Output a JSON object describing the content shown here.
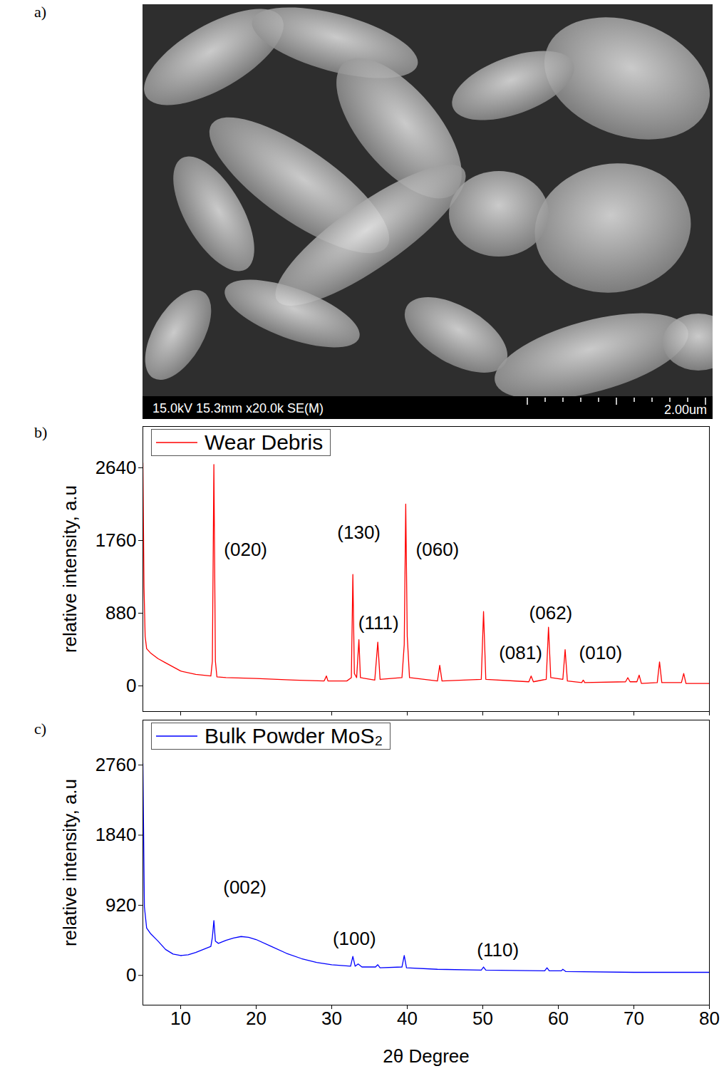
{
  "sem_image": {
    "panel": "a)",
    "info": "15.0kV 15.3mm x20.0k SE(M)",
    "scale_bar": "2.00um"
  },
  "chart_data": [
    {
      "type": "line",
      "panel": "b)",
      "y_label": "relative intensity, a.u",
      "xlim": [
        5,
        80
      ],
      "xticks": [
        10,
        20,
        30,
        40,
        50,
        60,
        70,
        80
      ],
      "ylim": [
        -310,
        3140
      ],
      "yticks": [
        0,
        880,
        1760,
        2640
      ],
      "tick_labels": "y",
      "legend": "top-left",
      "x": [
        5,
        5.15,
        5.3,
        5.5,
        6,
        7,
        8,
        10,
        12,
        14,
        14.2,
        14.4,
        14.6,
        14.8,
        16,
        20,
        25,
        29,
        29.3,
        29.5,
        32,
        32.6,
        32.8,
        33.0,
        33.3,
        33.6,
        33.8,
        35.7,
        36.1,
        36.4,
        39.3,
        39.6,
        39.8,
        40.0,
        40.3,
        44.0,
        44.3,
        44.6,
        49.8,
        50.1,
        50.4,
        56.1,
        56.4,
        56.7,
        58.4,
        58.7,
        59.0,
        60.6,
        60.9,
        61.2,
        63.1,
        63.3,
        63.5,
        68.9,
        69.2,
        69.5,
        70.4,
        70.7,
        71.0,
        73.1,
        73.4,
        73.7,
        76.3,
        76.6,
        76.9,
        80
      ],
      "series": [
        {
          "name": "Wear Debris",
          "color": "#ff0000",
          "values": [
            2700,
            1200,
            600,
            450,
            400,
            330,
            280,
            180,
            140,
            120,
            300,
            2680,
            300,
            110,
            100,
            90,
            70,
            60,
            120,
            60,
            60,
            100,
            1350,
            150,
            100,
            560,
            100,
            70,
            530,
            80,
            100,
            500,
            2200,
            600,
            100,
            60,
            250,
            60,
            80,
            900,
            80,
            50,
            120,
            50,
            80,
            710,
            100,
            80,
            440,
            60,
            40,
            70,
            40,
            50,
            100,
            50,
            50,
            130,
            30,
            40,
            290,
            40,
            40,
            150,
            30,
            30
          ]
        }
      ],
      "annotations": [
        {
          "text": "(020)",
          "x": 18.6,
          "y": 1650
        },
        {
          "text": "(130)",
          "x": 33.6,
          "y": 1850
        },
        {
          "text": "(111)",
          "x": 36.2,
          "y": 760
        },
        {
          "text": "(060)",
          "x": 44.0,
          "y": 1650
        },
        {
          "text": "(081)",
          "x": 55.0,
          "y": 400
        },
        {
          "text": "(062)",
          "x": 59.0,
          "y": 880
        },
        {
          "text": "(010)",
          "x": 65.6,
          "y": 400
        }
      ]
    },
    {
      "type": "line",
      "panel": "c)",
      "x_label": "2θ Degree",
      "y_label": "relative intensity, a.u",
      "xlim": [
        5,
        80
      ],
      "xticks": [
        10,
        20,
        30,
        40,
        50,
        60,
        70,
        80
      ],
      "ylim": [
        -390,
        3350
      ],
      "yticks": [
        0,
        920,
        1840,
        2760
      ],
      "legend": "top-left",
      "x": [
        5,
        5.2,
        5.5,
        6,
        7,
        8,
        9,
        10,
        11,
        12,
        13,
        14,
        14.2,
        14.4,
        14.6,
        15,
        16,
        17,
        18,
        19,
        20,
        22,
        24,
        26,
        28,
        30,
        32.5,
        32.8,
        33.1,
        33.5,
        34,
        35.8,
        36.1,
        36.4,
        39.3,
        39.6,
        39.9,
        44,
        49.8,
        50.1,
        50.4,
        58.2,
        58.5,
        58.8,
        60.4,
        60.6,
        61,
        70,
        80
      ],
      "series": [
        {
          "name": "Bulk Powder MoS₂",
          "color": "#0000ff",
          "values": [
            2780,
            900,
            620,
            550,
            450,
            340,
            280,
            260,
            270,
            300,
            340,
            380,
            500,
            720,
            450,
            420,
            460,
            490,
            510,
            500,
            470,
            380,
            290,
            220,
            170,
            140,
            120,
            250,
            120,
            150,
            110,
            110,
            140,
            100,
            110,
            260,
            100,
            80,
            70,
            110,
            70,
            60,
            100,
            60,
            60,
            80,
            50,
            40,
            40
          ]
        }
      ],
      "annotations": [
        {
          "text": "(002)",
          "x": 18.5,
          "y": 1150
        },
        {
          "text": "(100)",
          "x": 33.0,
          "y": 480
        },
        {
          "text": "(110)",
          "x": 52.0,
          "y": 330
        }
      ]
    }
  ]
}
